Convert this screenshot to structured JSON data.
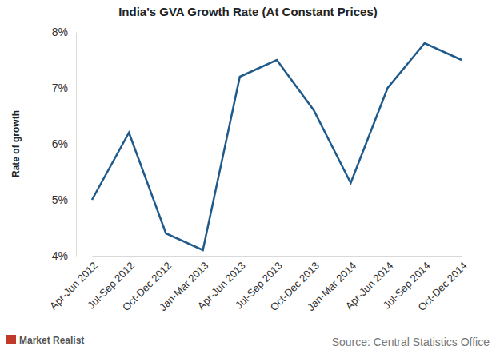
{
  "chart_data": {
    "type": "line",
    "title": "India's GVA Growth Rate (At Constant Prices)",
    "y_label": "Rate of growth",
    "source": "Source: Central Statistics Office",
    "brand": "Market Realist",
    "categories": [
      "Apr-Jun 2012",
      "Jul-Sep 2012",
      "Oct-Dec 2012",
      "Jan-Mar 2013",
      "Apr-Jun 2013",
      "Jul-Sep 2013",
      "Oct-Dec 2013",
      "Jan-Mar 2014",
      "Apr-Jun 2014",
      "Jul-Sep 2014",
      "Oct-Dec 2014"
    ],
    "values": [
      5.0,
      6.2,
      4.4,
      4.1,
      7.2,
      7.5,
      6.6,
      5.3,
      7.0,
      7.8,
      7.5
    ],
    "color": "#1f5a8a",
    "ylim": [
      4,
      8
    ],
    "yticks": [
      {
        "value": 4,
        "label": "4%"
      },
      {
        "value": 5,
        "label": "5%"
      },
      {
        "value": 6,
        "label": "6%"
      },
      {
        "value": 7,
        "label": "7%"
      },
      {
        "value": 8,
        "label": "8%"
      }
    ],
    "grid": false
  }
}
